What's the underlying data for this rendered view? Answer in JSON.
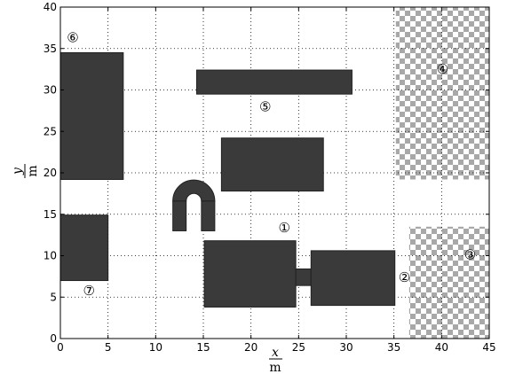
{
  "chart_data": {
    "type": "diagram",
    "xlim": [
      0,
      45
    ],
    "ylim": [
      0,
      40
    ],
    "x_ticks": [
      0,
      5,
      10,
      15,
      20,
      25,
      30,
      35,
      40,
      45
    ],
    "y_ticks": [
      0,
      5,
      10,
      15,
      20,
      25,
      30,
      35,
      40
    ],
    "grid": true,
    "xlabel": {
      "var": "x",
      "unit": "m"
    },
    "ylabel": {
      "var": "y",
      "unit": "m"
    },
    "colors": {
      "obstacle": "#3a3a3a",
      "checker_dark": "#a8a8a8",
      "checker_light": "#ffffff"
    },
    "obstacles": [
      {
        "id": "obstacle-6",
        "x": [
          0,
          6.6
        ],
        "y": [
          19.2,
          34.5
        ]
      },
      {
        "id": "obstacle-5",
        "x": [
          14.3,
          30.6
        ],
        "y": [
          29.5,
          32.4
        ]
      },
      {
        "id": "obstacle-center",
        "x": [
          16.9,
          27.6
        ],
        "y": [
          17.8,
          24.2
        ]
      },
      {
        "id": "obstacle-7",
        "x": [
          0,
          5.0
        ],
        "y": [
          7.0,
          14.9
        ]
      },
      {
        "id": "obstacle-1",
        "x": [
          15.1,
          24.7
        ],
        "y": [
          3.8,
          11.8
        ]
      },
      {
        "id": "obstacle-connector",
        "x": [
          24.7,
          26.3
        ],
        "y": [
          6.4,
          8.4
        ]
      },
      {
        "id": "obstacle-2",
        "x": [
          26.3,
          35.1
        ],
        "y": [
          4.0,
          10.6
        ]
      },
      {
        "id": "magnet-left-leg",
        "x": [
          11.8,
          13.2
        ],
        "y": [
          13.0,
          16.6
        ]
      },
      {
        "id": "magnet-right-leg",
        "x": [
          14.8,
          16.2
        ],
        "y": [
          13.0,
          16.6
        ]
      }
    ],
    "magnet_arch": {
      "cx": 14.0,
      "cy": 16.6,
      "r_outer": 2.2,
      "r_inner": 0.8
    },
    "checker_regions": [
      {
        "id": "region-4",
        "x": [
          35.2,
          45
        ],
        "y": [
          19.2,
          40
        ]
      },
      {
        "id": "region-3",
        "x": [
          36.6,
          45
        ],
        "y": [
          0,
          13.5
        ]
      }
    ],
    "labels": [
      {
        "text": "①",
        "x": 23.5,
        "y": 13.5
      },
      {
        "text": "②",
        "x": 36.1,
        "y": 7.5
      },
      {
        "text": "③",
        "x": 43.0,
        "y": 10.2
      },
      {
        "text": "④",
        "x": 40.1,
        "y": 32.6
      },
      {
        "text": "⑤",
        "x": 21.5,
        "y": 28.1
      },
      {
        "text": "⑥",
        "x": 1.3,
        "y": 36.4
      },
      {
        "text": "⑦",
        "x": 3.0,
        "y": 5.9
      }
    ]
  }
}
